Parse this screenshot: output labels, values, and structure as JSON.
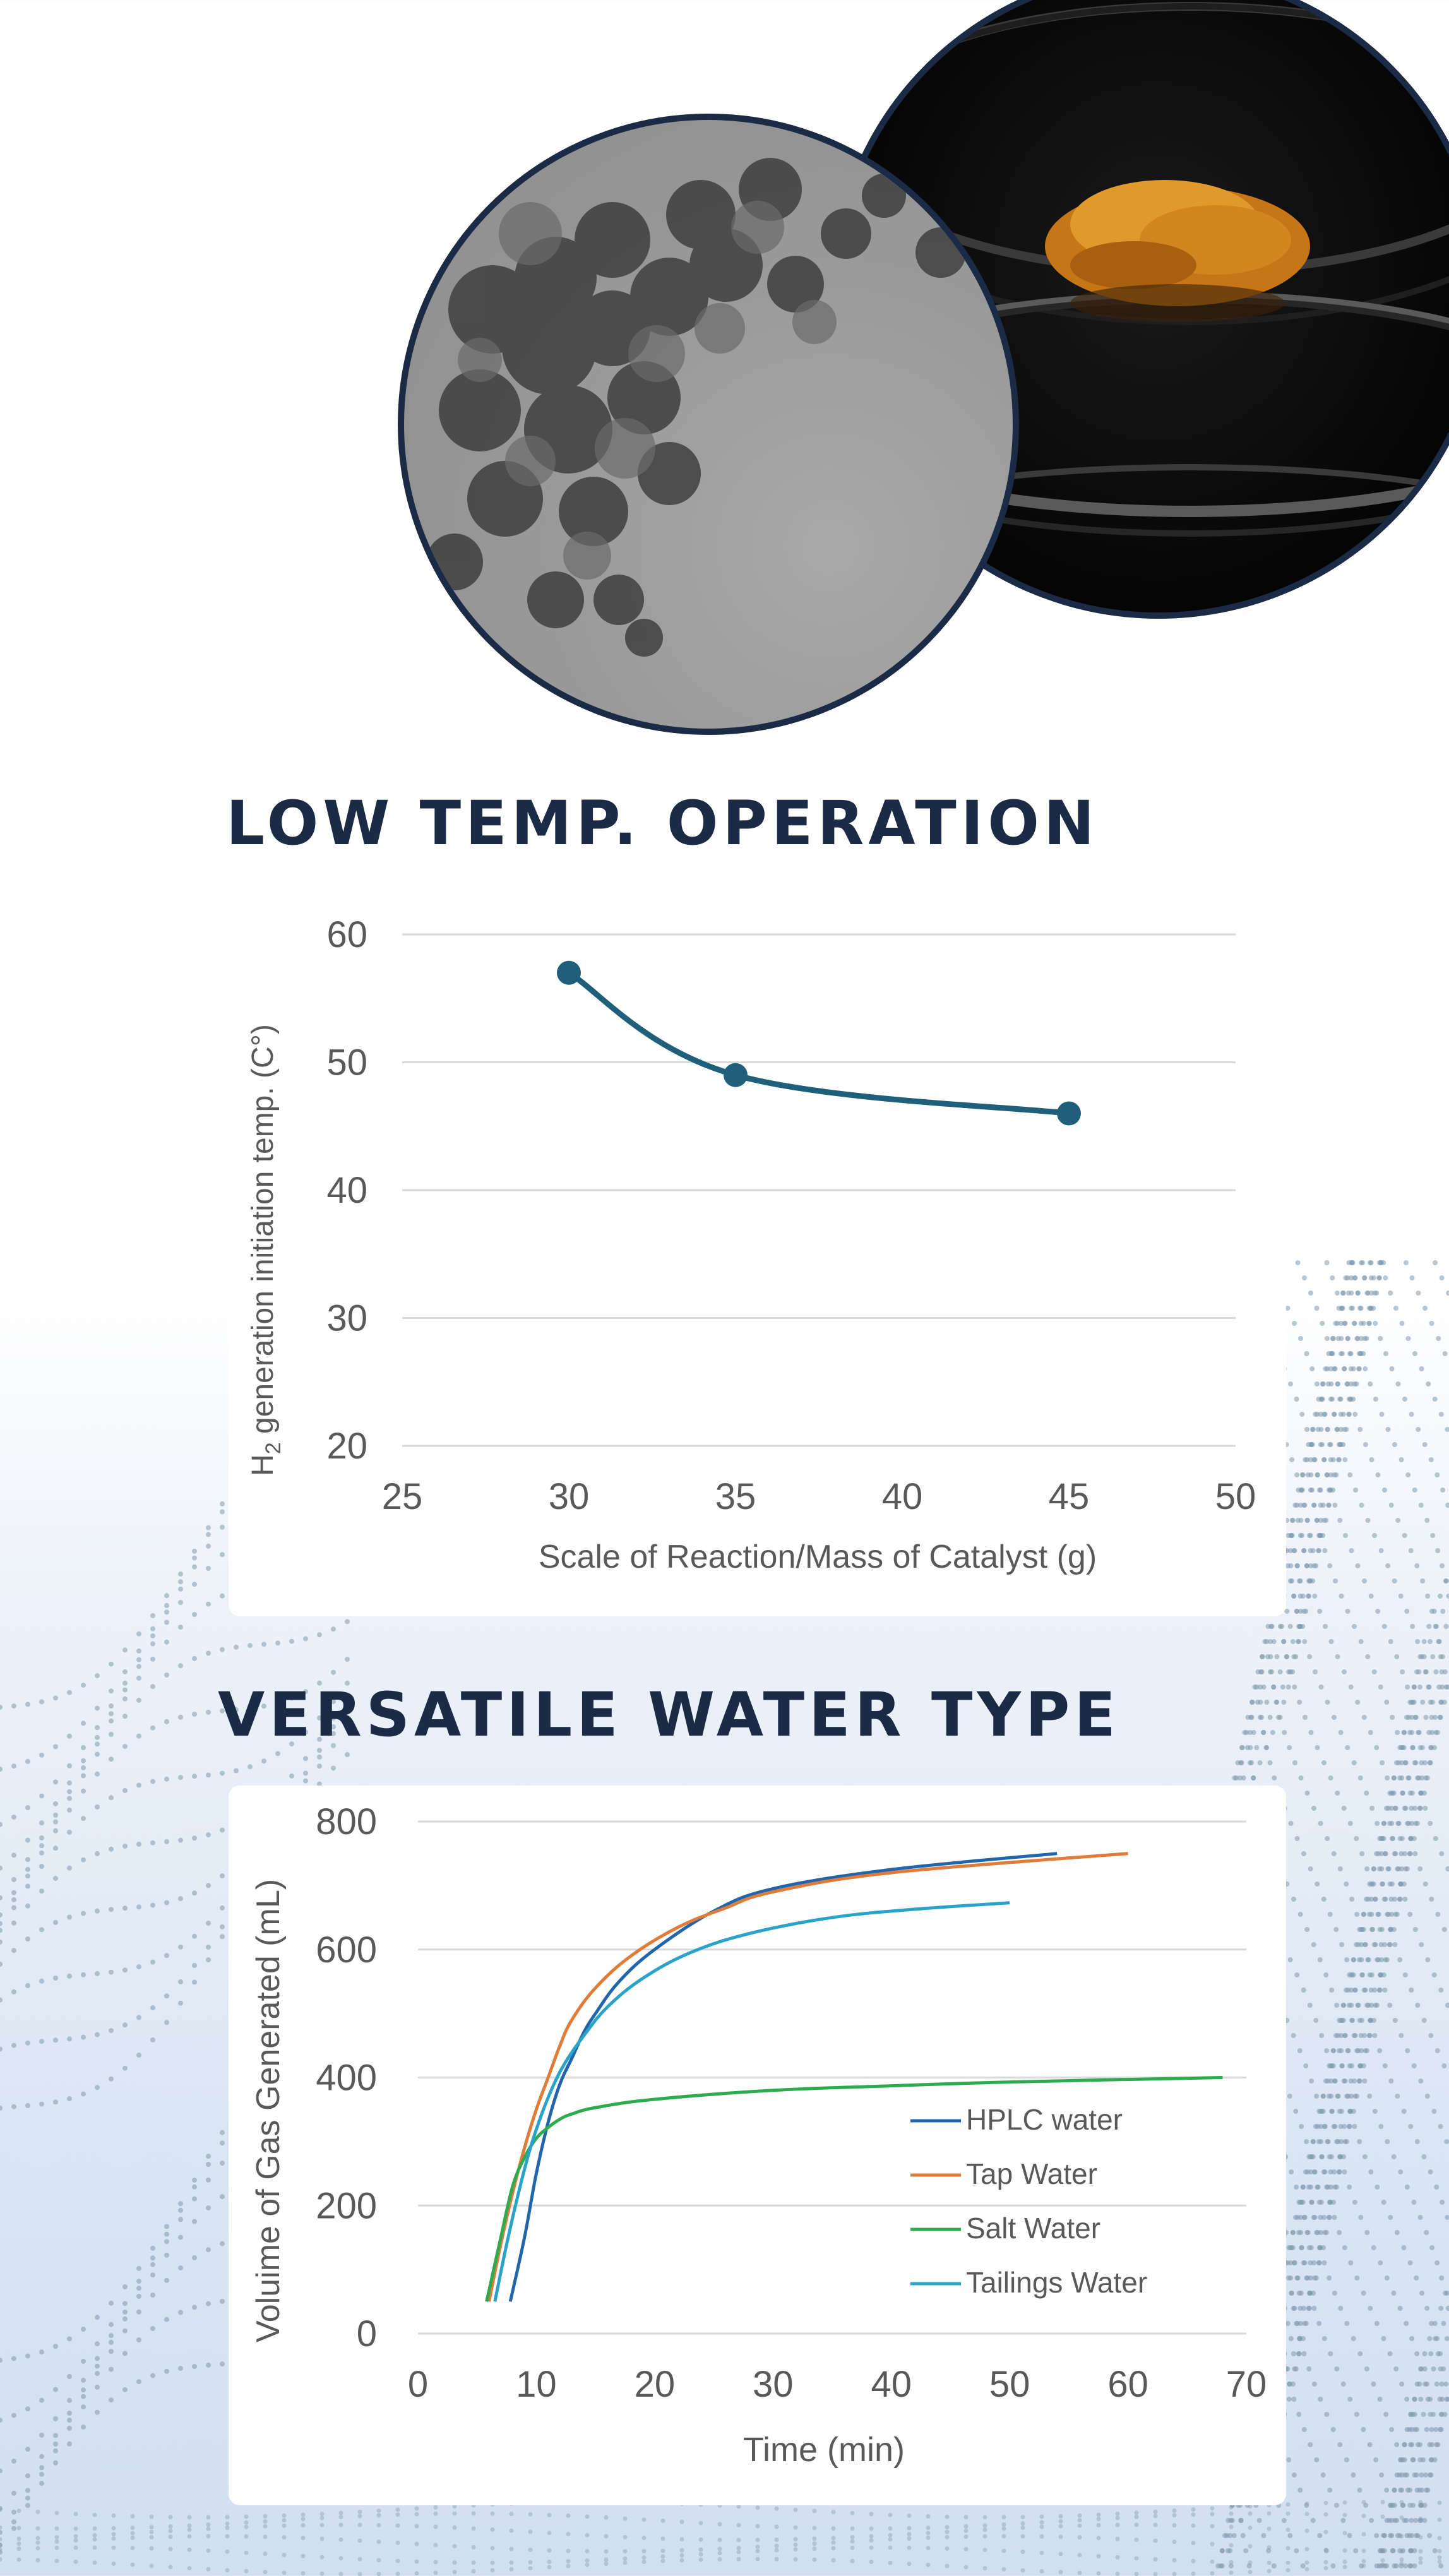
{
  "sections": {
    "low_temp_title": "LOW TEMP. OPERATION",
    "water_type_title": "VERSATILE WATER TYPE"
  },
  "colors": {
    "navy": "#1b2a45",
    "line1": "#1f5f7a",
    "hplc": "#2166ac",
    "tap": "#e07b39",
    "salt": "#2eab4f",
    "tailings": "#29a3c9"
  },
  "chart_data": [
    {
      "type": "line",
      "title": "",
      "xlabel": "Scale of Reaction/Mass of Catalyst (g)",
      "ylabel_main": "H",
      "ylabel_sub": "2",
      "ylabel_rest": " generation initiation temp. (C°)",
      "x": [
        30,
        35,
        45
      ],
      "y": [
        57,
        49,
        46
      ],
      "xlim": [
        25,
        50
      ],
      "ylim": [
        20,
        60
      ],
      "xticks": [
        25,
        30,
        35,
        40,
        45,
        50
      ],
      "yticks": [
        20,
        30,
        40,
        50,
        60
      ],
      "grid": true,
      "smooth": true
    },
    {
      "type": "line",
      "title": "",
      "xlabel": "Time (min)",
      "ylabel": "Voluime of Gas Generated (mL)",
      "xlim": [
        0,
        70
      ],
      "ylim": [
        0,
        800
      ],
      "xticks": [
        0,
        10,
        20,
        30,
        40,
        50,
        60,
        70
      ],
      "yticks": [
        0,
        200,
        400,
        600,
        800
      ],
      "grid": true,
      "legend": "bottom-right",
      "series": [
        {
          "name": "HPLC water",
          "x": [
            7.8,
            9,
            10,
            11,
            12,
            13,
            14,
            15,
            17,
            20,
            25,
            30,
            40,
            54
          ],
          "y": [
            50,
            150,
            250,
            330,
            390,
            430,
            470,
            500,
            550,
            600,
            660,
            695,
            725,
            750
          ]
        },
        {
          "name": "Tap Water",
          "x": [
            6,
            7,
            8,
            9,
            10,
            11,
            12,
            13,
            15,
            18,
            22,
            26,
            30,
            40,
            60
          ],
          "y": [
            50,
            140,
            220,
            290,
            350,
            400,
            450,
            490,
            540,
            590,
            635,
            665,
            690,
            720,
            750
          ]
        },
        {
          "name": "Salt Water",
          "x": [
            5.8,
            7,
            8,
            9,
            10,
            11,
            12,
            13,
            15,
            20,
            30,
            40,
            50,
            68
          ],
          "y": [
            50,
            150,
            230,
            275,
            305,
            322,
            335,
            343,
            353,
            366,
            380,
            387,
            393,
            400
          ]
        },
        {
          "name": "Tailings Water",
          "x": [
            6.5,
            7.5,
            8.5,
            9.5,
            10.5,
            11.5,
            12.5,
            14,
            16,
            19,
            23,
            28,
            35,
            42,
            50
          ],
          "y": [
            50,
            140,
            220,
            290,
            345,
            390,
            425,
            465,
            510,
            555,
            595,
            625,
            650,
            663,
            673
          ]
        }
      ]
    }
  ]
}
